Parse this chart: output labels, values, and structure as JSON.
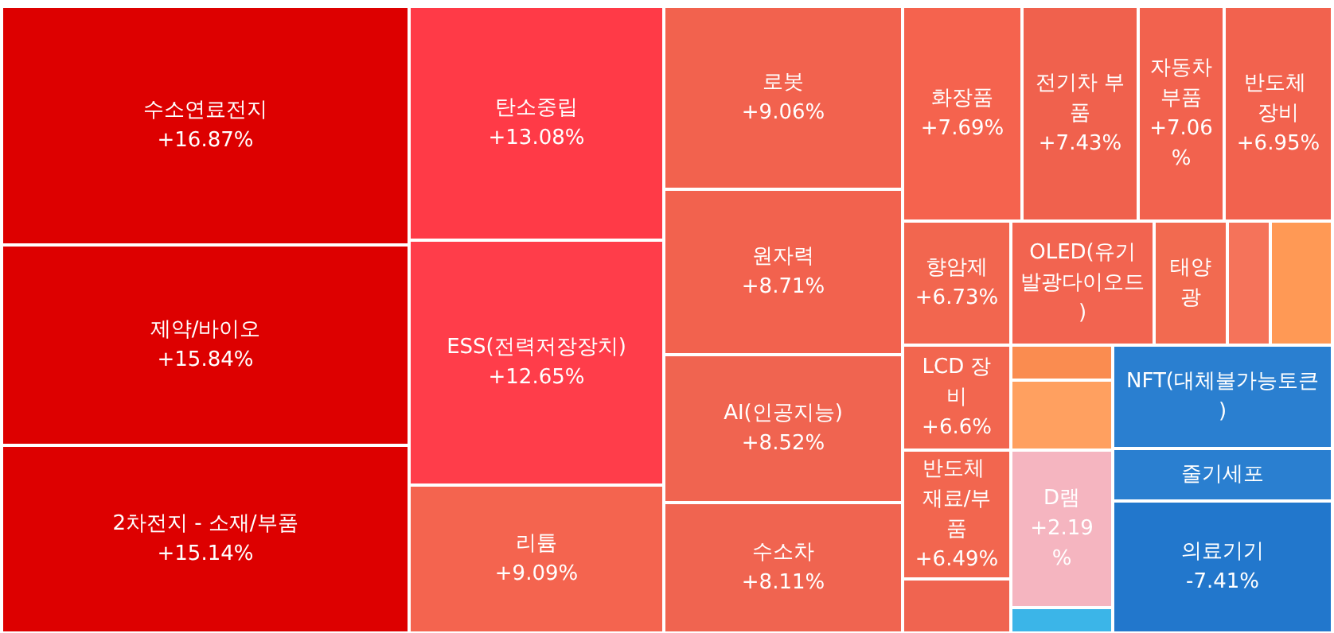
{
  "chart_data": {
    "type": "other",
    "categories": [
      "수소연료전지",
      "제약/바이오",
      "2차전지 - 소재/부품",
      "탄소중립",
      "ESS(전력저장장치)",
      "리튬",
      "로봇",
      "원자력",
      "AI(인공지능)",
      "수소차",
      "화장품",
      "전기차 부품",
      "자동차 부품",
      "반도체 장비",
      "향암제",
      "OLED(유기발광다이오드)",
      "태양광",
      "LCD 장비",
      "반도체 재료/부품",
      "D램",
      "NFT(대체불가능토큰)",
      "줄기세포",
      "의료기기"
    ],
    "values": [
      16.87,
      15.84,
      15.14,
      13.08,
      12.65,
      9.09,
      9.06,
      8.71,
      8.52,
      8.11,
      7.69,
      7.43,
      7.06,
      6.95,
      6.73,
      null,
      null,
      6.6,
      6.49,
      2.19,
      null,
      null,
      -7.41
    ],
    "value_labels": [
      "+16.87%",
      "+15.84%",
      "+15.14%",
      "+13.08%",
      "+12.65%",
      "+9.09%",
      "+9.06%",
      "+8.71%",
      "+8.52%",
      "+8.11%",
      "+7.69%",
      "+7.43%",
      "+7.06%",
      "+6.95%",
      "+6.73%",
      null,
      null,
      "+6.6%",
      "+6.49%",
      "+2.19%",
      null,
      null,
      "-7.41%"
    ],
    "colors": [
      "#dd0000",
      "#dd0000",
      "#dd0000",
      "#ff3a47",
      "#ff3d4a",
      "#f4644f",
      "#f2624e",
      "#f2624e",
      "#f06450",
      "#f06450",
      "#f5634e",
      "#f0614d",
      "#f2624e",
      "#f2624e",
      "#f2664f",
      "#f26450",
      "#f26a50",
      "#f2664f",
      "#f2664f",
      "#f5b5c0",
      "#2a7fd0",
      "#2a7fd0",
      "#2277cc"
    ]
  }
}
